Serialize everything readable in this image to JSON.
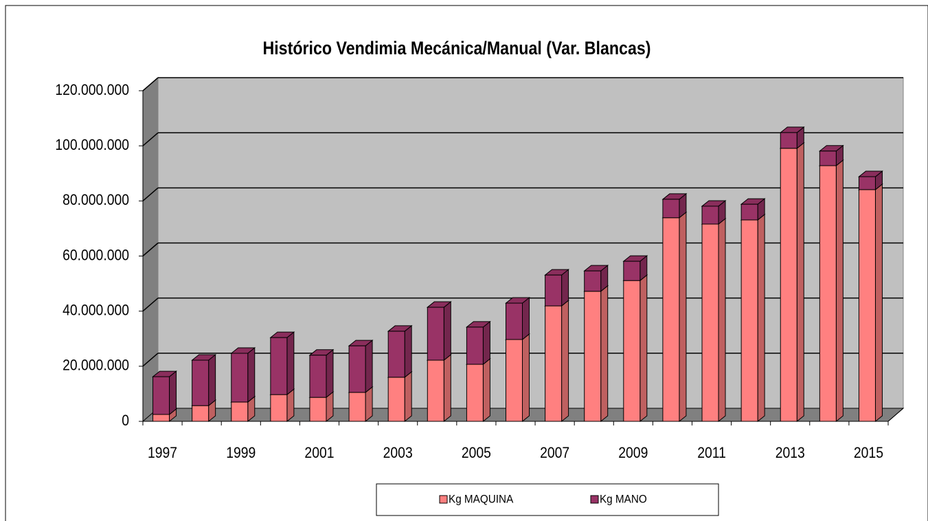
{
  "chart_data": {
    "type": "bar3d_stacked",
    "title": "Histórico Vendimia Mecánica/Manual (Var. Blancas)",
    "categories": [
      "1997",
      null,
      "1999",
      null,
      "2001",
      null,
      "2003",
      null,
      "2005",
      null,
      "2007",
      null,
      "2009",
      null,
      "2011",
      null,
      "2013",
      null,
      "2015"
    ],
    "series": [
      {
        "name": "Kg MAQUINA",
        "color": "#ff8080",
        "values": [
          2500000,
          5700000,
          7000000,
          9700000,
          8700000,
          10500000,
          16000000,
          22200000,
          20700000,
          29700000,
          41900000,
          47200000,
          51100000,
          73900000,
          71600000,
          73100000,
          99100000,
          92800000,
          84100000
        ]
      },
      {
        "name": "Kg MANO",
        "color": "#993366",
        "values": [
          13700000,
          16500000,
          17700000,
          20700000,
          15300000,
          16900000,
          16700000,
          19200000,
          13500000,
          13200000,
          11200000,
          7400000,
          7000000,
          6700000,
          6500000,
          5700000,
          5700000,
          5300000,
          4700000
        ]
      }
    ],
    "ylim": [
      0,
      120000000
    ],
    "yticks": [
      0,
      {
        "value": 20000000,
        "label": "20.000.000"
      },
      {
        "value": 40000000,
        "label": "40.000.000"
      },
      {
        "value": 60000000,
        "label": "60.000.000"
      },
      {
        "value": 80000000,
        "label": "80.000.000"
      },
      {
        "value": 100000000,
        "label": "100.000.000"
      },
      {
        "value": 120000000,
        "label": "120.000.000"
      }
    ],
    "grid": true
  }
}
